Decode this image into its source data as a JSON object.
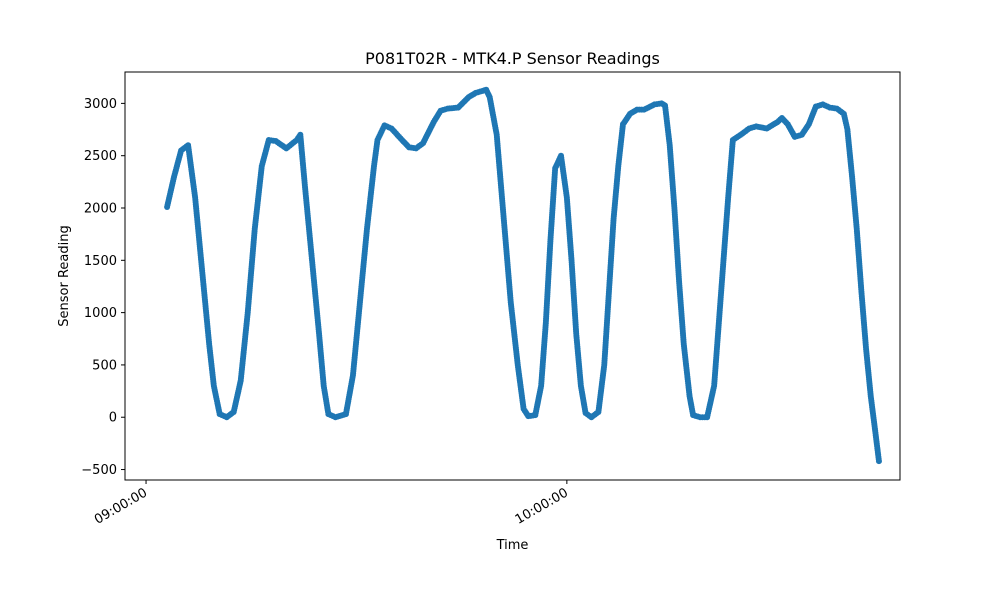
{
  "chart_data": {
    "type": "scatter",
    "title": "P081T02R - MTK4.P Sensor Readings",
    "xlabel": "Time",
    "ylabel": "Sensor Reading",
    "xlim": [
      "08:57:00",
      "10:47:30"
    ],
    "ylim": [
      -600,
      3300
    ],
    "x_ticks": [
      "09:00:00",
      "10:00:00"
    ],
    "y_ticks": [
      -500,
      0,
      500,
      1000,
      1500,
      2000,
      2500,
      3000
    ],
    "grid": false,
    "legend": "none",
    "series": [
      {
        "color": "#1f77b4",
        "points": [
          [
            "09:03:00",
            2010
          ],
          [
            "09:04:00",
            2300
          ],
          [
            "09:05:00",
            2550
          ],
          [
            "09:06:00",
            2600
          ],
          [
            "09:07:00",
            2100
          ],
          [
            "09:08:00",
            1400
          ],
          [
            "09:09:00",
            700
          ],
          [
            "09:09:40",
            300
          ],
          [
            "09:10:30",
            30
          ],
          [
            "09:11:30",
            0
          ],
          [
            "09:12:30",
            50
          ],
          [
            "09:13:30",
            350
          ],
          [
            "09:14:30",
            1000
          ],
          [
            "09:15:30",
            1800
          ],
          [
            "09:16:30",
            2400
          ],
          [
            "09:17:30",
            2650
          ],
          [
            "09:18:30",
            2640
          ],
          [
            "09:20:00",
            2570
          ],
          [
            "09:21:30",
            2650
          ],
          [
            "09:22:00",
            2700
          ],
          [
            "09:22:40",
            2200
          ],
          [
            "09:23:40",
            1500
          ],
          [
            "09:24:40",
            800
          ],
          [
            "09:25:20",
            300
          ],
          [
            "09:26:00",
            30
          ],
          [
            "09:27:00",
            0
          ],
          [
            "09:28:30",
            30
          ],
          [
            "09:29:30",
            400
          ],
          [
            "09:30:30",
            1100
          ],
          [
            "09:31:30",
            1800
          ],
          [
            "09:32:30",
            2400
          ],
          [
            "09:33:00",
            2650
          ],
          [
            "09:34:00",
            2790
          ],
          [
            "09:35:00",
            2760
          ],
          [
            "09:36:30",
            2650
          ],
          [
            "09:37:30",
            2580
          ],
          [
            "09:38:30",
            2570
          ],
          [
            "09:39:30",
            2620
          ],
          [
            "09:41:00",
            2820
          ],
          [
            "09:42:00",
            2930
          ],
          [
            "09:43:00",
            2950
          ],
          [
            "09:44:30",
            2960
          ],
          [
            "09:46:00",
            3060
          ],
          [
            "09:47:00",
            3100
          ],
          [
            "09:48:00",
            3120
          ],
          [
            "09:48:30",
            3130
          ],
          [
            "09:49:00",
            3060
          ],
          [
            "09:50:00",
            2700
          ],
          [
            "09:51:00",
            1900
          ],
          [
            "09:52:00",
            1100
          ],
          [
            "09:53:00",
            500
          ],
          [
            "09:53:50",
            80
          ],
          [
            "09:54:30",
            10
          ],
          [
            "09:55:30",
            20
          ],
          [
            "09:56:20",
            300
          ],
          [
            "09:57:00",
            900
          ],
          [
            "09:57:40",
            1700
          ],
          [
            "09:58:20",
            2380
          ],
          [
            "09:59:10",
            2500
          ],
          [
            "10:00:00",
            2100
          ],
          [
            "10:00:40",
            1500
          ],
          [
            "10:01:20",
            800
          ],
          [
            "10:02:00",
            300
          ],
          [
            "10:02:40",
            40
          ],
          [
            "10:03:30",
            0
          ],
          [
            "10:04:30",
            50
          ],
          [
            "10:05:20",
            500
          ],
          [
            "10:06:00",
            1200
          ],
          [
            "10:06:40",
            1900
          ],
          [
            "10:07:20",
            2400
          ],
          [
            "10:08:00",
            2800
          ],
          [
            "10:09:00",
            2900
          ],
          [
            "10:10:00",
            2940
          ],
          [
            "10:11:00",
            2940
          ],
          [
            "10:12:30",
            2990
          ],
          [
            "10:13:30",
            3000
          ],
          [
            "10:14:00",
            2980
          ],
          [
            "10:14:40",
            2600
          ],
          [
            "10:15:20",
            2000
          ],
          [
            "10:16:00",
            1300
          ],
          [
            "10:16:40",
            700
          ],
          [
            "10:17:30",
            200
          ],
          [
            "10:18:00",
            20
          ],
          [
            "10:19:00",
            0
          ],
          [
            "10:20:00",
            0
          ],
          [
            "10:21:00",
            300
          ],
          [
            "10:21:40",
            900
          ],
          [
            "10:22:20",
            1500
          ],
          [
            "10:23:00",
            2100
          ],
          [
            "10:23:40",
            2650
          ],
          [
            "10:25:00",
            2710
          ],
          [
            "10:26:00",
            2760
          ],
          [
            "10:27:00",
            2780
          ],
          [
            "10:28:30",
            2760
          ],
          [
            "10:30:00",
            2820
          ],
          [
            "10:30:40",
            2860
          ],
          [
            "10:31:30",
            2800
          ],
          [
            "10:32:30",
            2680
          ],
          [
            "10:33:30",
            2700
          ],
          [
            "10:34:30",
            2800
          ],
          [
            "10:35:30",
            2970
          ],
          [
            "10:36:30",
            2990
          ],
          [
            "10:37:30",
            2960
          ],
          [
            "10:38:30",
            2950
          ],
          [
            "10:39:30",
            2900
          ],
          [
            "10:40:00",
            2750
          ],
          [
            "10:40:40",
            2300
          ],
          [
            "10:41:20",
            1800
          ],
          [
            "10:42:00",
            1200
          ],
          [
            "10:42:40",
            650
          ],
          [
            "10:43:20",
            200
          ],
          [
            "10:44:00",
            -150
          ],
          [
            "10:44:30",
            -420
          ]
        ]
      }
    ]
  }
}
